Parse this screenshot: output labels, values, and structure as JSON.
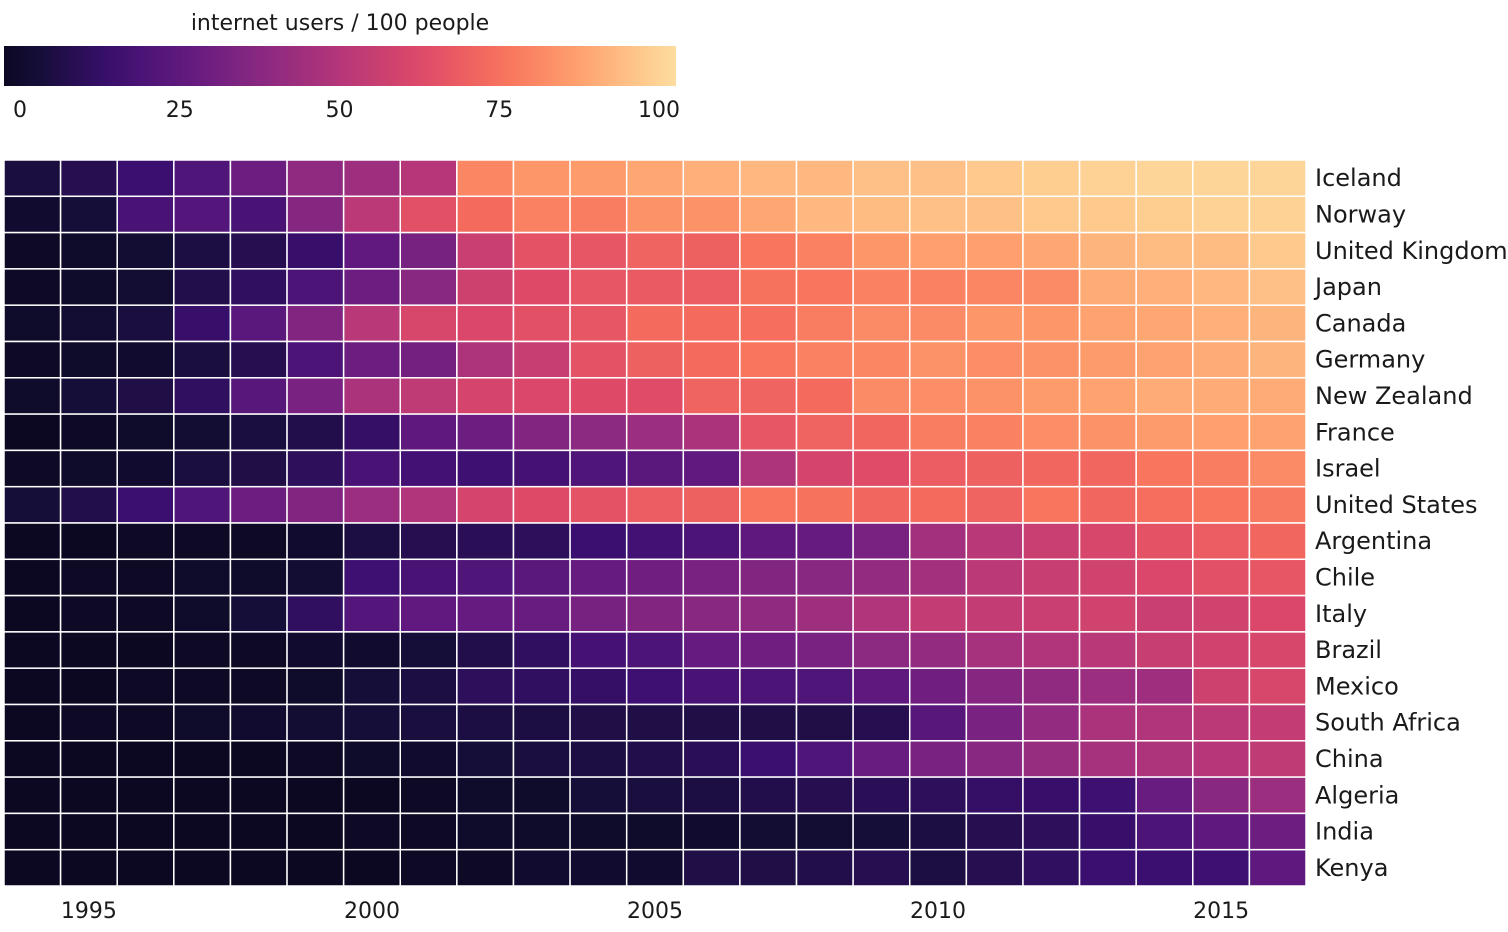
{
  "chart_data": {
    "type": "heatmap",
    "legend": {
      "title": "internet users / 100 people",
      "ticks": [
        "0",
        "25",
        "50",
        "75",
        "100"
      ],
      "range": [
        0,
        100
      ]
    },
    "x_ticks": [
      "1995",
      "2000",
      "2005",
      "2010",
      "2015"
    ],
    "years": [
      1994,
      1995,
      1996,
      1997,
      1998,
      1999,
      2000,
      2001,
      2002,
      2003,
      2004,
      2005,
      2006,
      2007,
      2008,
      2009,
      2010,
      2011,
      2012,
      2013,
      2014,
      2015,
      2016
    ],
    "countries": [
      {
        "name": "Iceland",
        "values": [
          6,
          10,
          16,
          22,
          30,
          40,
          44,
          50,
          79,
          83,
          84,
          87,
          89,
          91,
          91,
          93,
          93,
          95,
          96,
          97,
          98,
          98,
          98
        ]
      },
      {
        "name": "Norway",
        "values": [
          3,
          5,
          20,
          23,
          20,
          37,
          52,
          64,
          72,
          78,
          77,
          82,
          82,
          87,
          91,
          92,
          93,
          93,
          95,
          95,
          96,
          97,
          97
        ]
      },
      {
        "name": "United Kingdom",
        "values": [
          1,
          2,
          4,
          7,
          10,
          15,
          27,
          33,
          56,
          65,
          66,
          70,
          69,
          75,
          78,
          83,
          85,
          85,
          87,
          90,
          92,
          92,
          95
        ]
      },
      {
        "name": "Japan",
        "values": [
          1,
          2,
          4,
          9,
          13,
          21,
          30,
          38,
          57,
          62,
          66,
          67,
          68,
          74,
          75,
          78,
          78,
          79,
          80,
          88,
          89,
          91,
          93
        ]
      },
      {
        "name": "Canada",
        "values": [
          2,
          4,
          6,
          15,
          25,
          36,
          51,
          60,
          61,
          64,
          66,
          72,
          72,
          73,
          77,
          80,
          80,
          83,
          83,
          86,
          87,
          89,
          90
        ]
      },
      {
        "name": "Germany",
        "values": [
          1,
          2,
          3,
          6,
          10,
          21,
          30,
          32,
          48,
          55,
          65,
          69,
          72,
          75,
          78,
          79,
          82,
          81,
          82,
          84,
          86,
          88,
          90
        ]
      },
      {
        "name": "New Zealand",
        "values": [
          2,
          5,
          8,
          13,
          24,
          34,
          47,
          53,
          59,
          61,
          62,
          63,
          70,
          70,
          72,
          80,
          81,
          82,
          84,
          86,
          88,
          88,
          88
        ]
      },
      {
        "name": "France",
        "values": [
          0,
          1,
          2,
          4,
          6,
          9,
          14,
          26,
          30,
          36,
          39,
          43,
          47,
          66,
          70,
          71,
          77,
          78,
          81,
          82,
          84,
          85,
          86
        ]
      },
      {
        "name": "Israel",
        "values": [
          1,
          2,
          3,
          6,
          8,
          12,
          20,
          18,
          17,
          19,
          22,
          25,
          27,
          48,
          59,
          63,
          68,
          69,
          71,
          71,
          75,
          77,
          80
        ]
      },
      {
        "name": "United States",
        "values": [
          5,
          9,
          16,
          22,
          30,
          36,
          43,
          49,
          59,
          62,
          65,
          68,
          69,
          75,
          74,
          71,
          72,
          70,
          75,
          71,
          73,
          75,
          76
        ]
      },
      {
        "name": "Argentina",
        "values": [
          0,
          0,
          1,
          1,
          1,
          3,
          7,
          10,
          11,
          12,
          16,
          18,
          21,
          26,
          28,
          34,
          45,
          51,
          56,
          60,
          65,
          68,
          71
        ]
      },
      {
        "name": "Chile",
        "values": [
          0,
          1,
          1,
          2,
          2,
          4,
          17,
          20,
          22,
          25,
          28,
          31,
          34,
          36,
          38,
          41,
          45,
          52,
          55,
          58,
          61,
          64,
          66
        ]
      },
      {
        "name": "Italy",
        "values": [
          0,
          1,
          1,
          2,
          5,
          13,
          23,
          27,
          28,
          29,
          33,
          36,
          38,
          40,
          44,
          49,
          54,
          54,
          56,
          58,
          56,
          58,
          61
        ]
      },
      {
        "name": "Brazil",
        "values": [
          0,
          0,
          0,
          1,
          1,
          3,
          3,
          5,
          9,
          13,
          19,
          21,
          28,
          31,
          34,
          39,
          41,
          46,
          49,
          51,
          55,
          58,
          60
        ]
      },
      {
        "name": "Mexico",
        "values": [
          0,
          0,
          1,
          1,
          1,
          2,
          5,
          7,
          12,
          13,
          14,
          17,
          20,
          21,
          22,
          26,
          31,
          37,
          40,
          43,
          44,
          57,
          60
        ]
      },
      {
        "name": "South Africa",
        "values": [
          0,
          1,
          1,
          2,
          3,
          4,
          5,
          6,
          7,
          7,
          8,
          8,
          8,
          8,
          8,
          10,
          24,
          34,
          41,
          47,
          49,
          52,
          54
        ]
      },
      {
        "name": "China",
        "values": [
          0,
          0,
          0,
          0,
          0,
          1,
          2,
          3,
          5,
          6,
          7,
          9,
          11,
          16,
          22,
          29,
          34,
          38,
          42,
          46,
          48,
          50,
          53
        ]
      },
      {
        "name": "Algeria",
        "values": [
          0,
          0,
          0,
          0,
          0,
          0,
          0,
          1,
          2,
          2,
          5,
          6,
          7,
          9,
          10,
          11,
          12,
          14,
          15,
          17,
          29,
          38,
          43
        ]
      },
      {
        "name": "India",
        "values": [
          0,
          0,
          0,
          0,
          0,
          0,
          1,
          1,
          2,
          2,
          2,
          2,
          3,
          4,
          4,
          5,
          7,
          10,
          12,
          15,
          21,
          26,
          30
        ]
      },
      {
        "name": "Kenya",
        "values": [
          0,
          0,
          0,
          0,
          0,
          0,
          0,
          1,
          1,
          3,
          3,
          3,
          8,
          8,
          9,
          10,
          7,
          10,
          13,
          16,
          16,
          17,
          26
        ]
      }
    ],
    "colormap": "magma",
    "grid": false
  }
}
